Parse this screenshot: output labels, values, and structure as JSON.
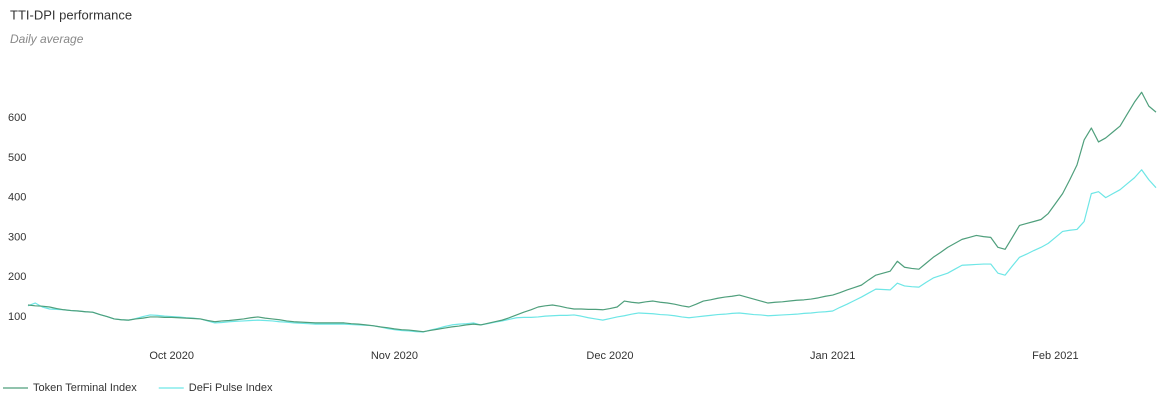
{
  "chart_data": {
    "type": "line",
    "title": "TTI-DPI performance",
    "subtitle": "Daily average",
    "categories": [
      null,
      null,
      null,
      null,
      null,
      null,
      null,
      null,
      null,
      null,
      null,
      null,
      null,
      null,
      null,
      null,
      null,
      null,
      null,
      null,
      "Oct 2020",
      null,
      null,
      null,
      null,
      null,
      null,
      null,
      null,
      null,
      null,
      null,
      null,
      null,
      null,
      null,
      null,
      null,
      null,
      null,
      null,
      null,
      null,
      null,
      null,
      null,
      null,
      null,
      null,
      null,
      null,
      "Nov 2020",
      null,
      null,
      null,
      null,
      null,
      null,
      null,
      null,
      null,
      null,
      null,
      null,
      null,
      null,
      null,
      null,
      null,
      null,
      null,
      null,
      null,
      null,
      null,
      null,
      null,
      null,
      null,
      null,
      null,
      "Dec 2020",
      null,
      null,
      null,
      null,
      null,
      null,
      null,
      null,
      null,
      null,
      null,
      null,
      null,
      null,
      null,
      null,
      null,
      null,
      null,
      null,
      null,
      null,
      null,
      null,
      null,
      null,
      null,
      null,
      null,
      null,
      "Jan 2021",
      null,
      null,
      null,
      null,
      null,
      null,
      null,
      null,
      null,
      null,
      null,
      null,
      null,
      null,
      null,
      null,
      null,
      null,
      null,
      null,
      null,
      null,
      null,
      null,
      null,
      null,
      null,
      null,
      null,
      null,
      "Feb 2021",
      null,
      null,
      null,
      null,
      null,
      null,
      null,
      null,
      null,
      null,
      null,
      null,
      null,
      null
    ],
    "series": [
      {
        "name": "Token Terminal Index",
        "color": "#4f9f7c",
        "values": [
          130,
          128,
          127,
          125,
          121,
          118,
          116,
          115,
          113,
          112,
          106,
          101,
          95,
          93,
          92,
          95,
          97,
          100,
          100,
          99,
          99,
          98,
          97,
          96,
          95,
          91,
          88,
          90,
          91,
          93,
          95,
          98,
          100,
          97,
          95,
          93,
          90,
          88,
          87,
          86,
          85,
          85,
          85,
          85,
          85,
          83,
          82,
          80,
          78,
          75,
          73,
          70,
          68,
          67,
          65,
          63,
          66,
          69,
          72,
          75,
          77,
          80,
          82,
          80,
          84,
          88,
          92,
          98,
          105,
          112,
          118,
          125,
          128,
          130,
          127,
          123,
          120,
          120,
          119,
          119,
          118,
          121,
          125,
          140,
          137,
          135,
          138,
          140,
          137,
          135,
          132,
          128,
          125,
          132,
          140,
          143,
          147,
          150,
          152,
          155,
          150,
          145,
          140,
          135,
          137,
          138,
          140,
          142,
          143,
          145,
          148,
          152,
          155,
          161,
          168,
          174,
          180,
          193,
          205,
          210,
          215,
          240,
          225,
          222,
          220,
          235,
          250,
          262,
          275,
          285,
          295,
          300,
          305,
          302,
          300,
          275,
          270,
          300,
          330,
          335,
          340,
          345,
          360,
          385,
          410,
          445,
          482,
          545,
          575,
          540,
          550,
          565,
          580,
          610,
          640,
          665,
          630,
          615
        ]
      },
      {
        "name": "DeFi Pulse Index",
        "color": "#6ee6e6",
        "values": [
          128,
          135,
          125,
          120,
          119,
          118,
          116,
          115,
          113,
          112,
          106,
          101,
          95,
          93,
          92,
          96,
          101,
          105,
          104,
          102,
          101,
          100,
          98,
          97,
          95,
          90,
          85,
          86,
          88,
          89,
          90,
          91,
          92,
          91,
          90,
          88,
          87,
          85,
          84,
          83,
          82,
          82,
          82,
          82,
          82,
          81,
          80,
          79,
          78,
          75,
          71,
          68,
          66,
          65,
          63,
          62,
          67,
          71,
          76,
          80,
          82,
          83,
          85,
          80,
          83,
          87,
          90,
          94,
          98,
          99,
          99,
          100,
          102,
          103,
          104,
          104,
          105,
          102,
          98,
          95,
          92,
          96,
          100,
          103,
          107,
          110,
          109,
          108,
          106,
          105,
          103,
          100,
          98,
          100,
          102,
          104,
          106,
          107,
          109,
          110,
          108,
          106,
          105,
          103,
          104,
          105,
          106,
          107,
          109,
          110,
          112,
          113,
          115,
          124,
          132,
          141,
          150,
          160,
          170,
          169,
          168,
          185,
          178,
          176,
          175,
          187,
          198,
          204,
          210,
          220,
          230,
          231,
          232,
          233,
          233,
          210,
          205,
          228,
          250,
          258,
          267,
          275,
          285,
          300,
          315,
          318,
          320,
          340,
          410,
          415,
          400,
          410,
          420,
          435,
          450,
          470,
          445,
          425
        ]
      }
    ],
    "ylim": [
      37,
      700
    ],
    "yticks": [
      100,
      200,
      300,
      400,
      500,
      600
    ],
    "grid": false,
    "legend": "bottom"
  }
}
